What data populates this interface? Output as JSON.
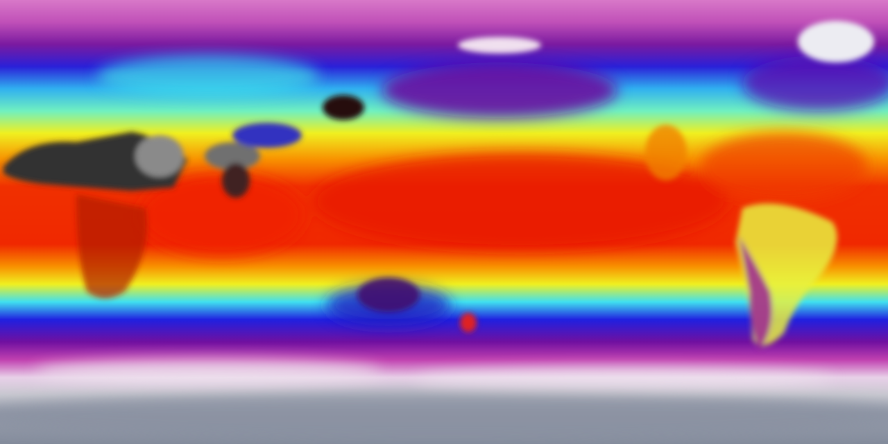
{
  "map": {
    "projection": "equirectangular",
    "variable_colormap": [
      "#e8e8ee",
      "#d060c0",
      "#8020a0",
      "#2020e0",
      "#40d0f0",
      "#f0f020",
      "#f08000",
      "#f02000",
      "#202020"
    ],
    "colors": {
      "polar_north": "#d070c8",
      "polar_south": "#8a90a0",
      "tropics": "#f02000",
      "hot_land": "#2a2a2a",
      "ice": "#e8e8ee"
    }
  }
}
